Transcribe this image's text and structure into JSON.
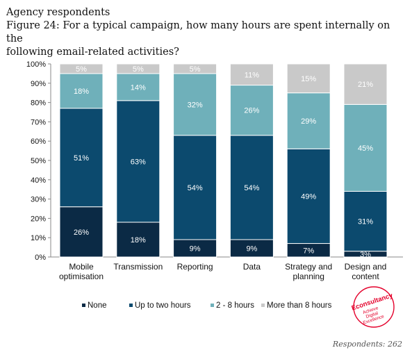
{
  "title_line1": "Agency respondents",
  "title_line2": "Figure 24: For a typical campaign, how many hours are spent internally on the",
  "title_line3": "following email-related activities?",
  "respondents": "Respondents: 262",
  "logo": {
    "name": "Econsultancy",
    "tagline_1": "Achieve",
    "tagline_2": "Digital",
    "tagline_3": "Excellence",
    "color": "#e4002b"
  },
  "chart_data": {
    "type": "bar",
    "stacked": true,
    "orientation": "vertical",
    "ylim": [
      0,
      100
    ],
    "y_ticks": [
      "0%",
      "10%",
      "20%",
      "30%",
      "40%",
      "50%",
      "60%",
      "70%",
      "80%",
      "90%",
      "100%"
    ],
    "categories": [
      [
        "Mobile",
        "optimisation"
      ],
      [
        "Transmission"
      ],
      [
        "Reporting"
      ],
      [
        "Data"
      ],
      [
        "Strategy and",
        "planning"
      ],
      [
        "Design and",
        "content"
      ]
    ],
    "series": [
      {
        "name": "None",
        "color": "#0b2a45",
        "label_color": "#ffffff",
        "values": [
          26,
          18,
          9,
          9,
          7,
          3
        ],
        "labels": [
          "26%",
          "18%",
          "9%",
          "9%",
          "7%",
          "3%"
        ]
      },
      {
        "name": "Up to two hours",
        "color": "#0c4a6e",
        "label_color": "#ffffff",
        "values": [
          51,
          63,
          54,
          54,
          49,
          31
        ],
        "labels": [
          "51%",
          "63%",
          "54%",
          "54%",
          "49%",
          "31%"
        ]
      },
      {
        "name": "2 - 8 hours",
        "color": "#6fb0ba",
        "label_color": "#ffffff",
        "values": [
          18,
          14,
          32,
          26,
          29,
          45
        ],
        "labels": [
          "18%",
          "14%",
          "32%",
          "26%",
          "29%",
          "45%"
        ]
      },
      {
        "name": "More than 8 hours",
        "color": "#c9c9c9",
        "label_color": "#ffffff",
        "values": [
          5,
          5,
          5,
          11,
          15,
          21
        ],
        "labels": [
          "5%",
          "5%",
          "5%",
          "11%",
          "15%",
          "21%"
        ]
      }
    ],
    "legend_position": "bottom",
    "grid": false
  }
}
